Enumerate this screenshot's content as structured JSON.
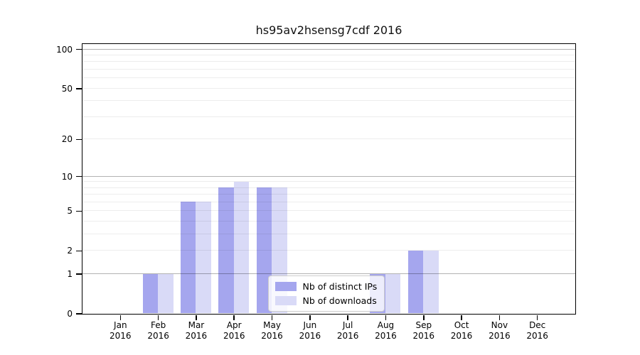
{
  "title": "hs95av2hsensg7cdf 2016",
  "chart_data": {
    "type": "bar",
    "title": "hs95av2hsensg7cdf 2016",
    "categories": [
      "Jan",
      "Feb",
      "Mar",
      "Apr",
      "May",
      "Jun",
      "Jul",
      "Aug",
      "Sep",
      "Oct",
      "Nov",
      "Dec"
    ],
    "year": "2016",
    "series": [
      {
        "name": "Nb of distinct IPs",
        "color": "#a5a6ee",
        "values": [
          0,
          1,
          6,
          8,
          8,
          0,
          0,
          1,
          2,
          0,
          0,
          0
        ]
      },
      {
        "name": "Nb of downloads",
        "color": "#d9daf7",
        "values": [
          0,
          1,
          6,
          9,
          8,
          0,
          0,
          1,
          2,
          0,
          0,
          0
        ]
      }
    ],
    "yscale": "log1p",
    "y_ticks": [
      0,
      1,
      2,
      5,
      10,
      20,
      50,
      100
    ],
    "ylim": [
      0,
      110
    ],
    "xlabel": "",
    "ylabel": "",
    "grid": "on",
    "legend_position": "inside lower center"
  }
}
